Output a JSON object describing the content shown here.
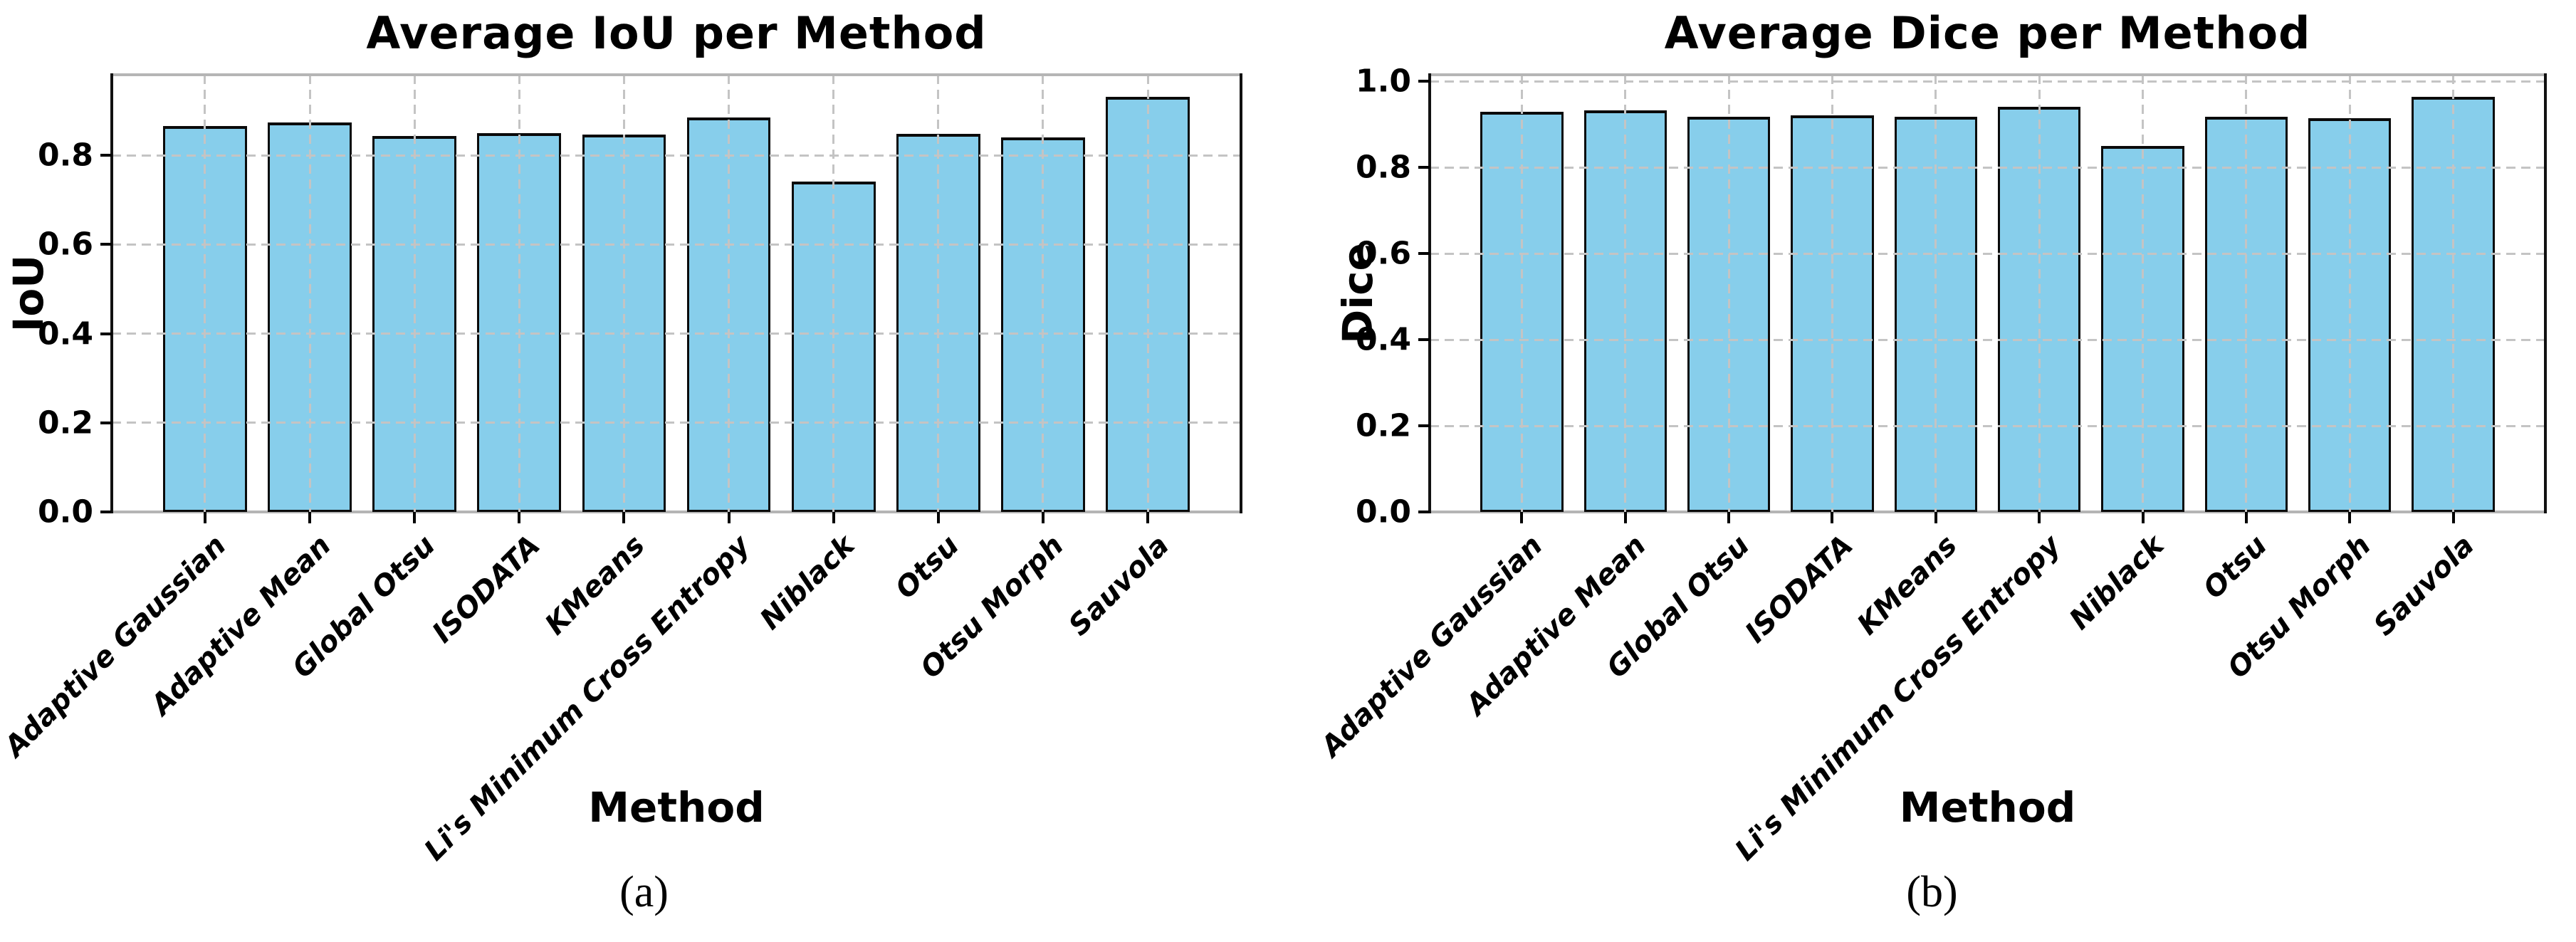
{
  "style": {
    "background": "#ffffff",
    "bar_fill": "#87CEEB",
    "bar_edge": "#0a0a0a",
    "grid_color": "#c4c4c4",
    "spine_dark": "#111111",
    "spine_light": "#b5b5b5",
    "text_color": "#000000"
  },
  "chart_data": [
    {
      "type": "bar",
      "title": "Average IoU per Method",
      "xlabel": "Method",
      "ylabel": "IoU",
      "caption": "(a)",
      "legend": "none",
      "grid": "dashed, drawn above bars",
      "categories": [
        "Adaptive Gaussian",
        "Adaptive Mean",
        "Global Otsu",
        "ISODATA",
        "KMeans",
        "Li's Minimum Cross Entropy",
        "Niblack",
        "Otsu",
        "Otsu Morph",
        "Sauvola"
      ],
      "values": [
        0.866,
        0.874,
        0.844,
        0.85,
        0.847,
        0.885,
        0.741,
        0.848,
        0.84,
        0.932
      ],
      "ylim": [
        0,
        0.981
      ],
      "yticks": [
        {
          "value": 0.0,
          "label": "0.0"
        },
        {
          "value": 0.2,
          "label": "0.2"
        },
        {
          "value": 0.4,
          "label": "0.4"
        },
        {
          "value": 0.6,
          "label": "0.6"
        },
        {
          "value": 0.8,
          "label": "0.8"
        }
      ]
    },
    {
      "type": "bar",
      "title": "Average Dice per Method",
      "xlabel": "Method",
      "ylabel": "Dice",
      "caption": "(b)",
      "legend": "none",
      "grid": "dashed, drawn above bars",
      "categories": [
        "Adaptive Gaussian",
        "Adaptive Mean",
        "Global Otsu",
        "ISODATA",
        "KMeans",
        "Li's Minimum Cross Entropy",
        "Niblack",
        "Otsu",
        "Otsu Morph",
        "Sauvola"
      ],
      "values": [
        0.929,
        0.932,
        0.917,
        0.921,
        0.917,
        0.941,
        0.85,
        0.918,
        0.914,
        0.964
      ],
      "ylim": [
        0,
        1.015
      ],
      "yticks": [
        {
          "value": 0.0,
          "label": "0.0"
        },
        {
          "value": 0.2,
          "label": "0.2"
        },
        {
          "value": 0.4,
          "label": "0.4"
        },
        {
          "value": 0.6,
          "label": "0.6"
        },
        {
          "value": 0.8,
          "label": "0.8"
        },
        {
          "value": 1.0,
          "label": "1.0"
        }
      ]
    }
  ]
}
